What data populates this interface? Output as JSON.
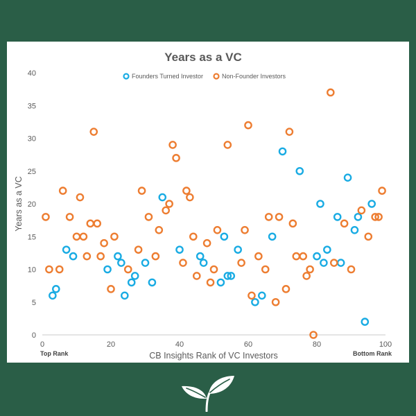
{
  "colors": {
    "background": "#2a5e47",
    "founder": "#19abe3",
    "non_founder": "#ed7d31",
    "text": "#595959"
  },
  "chart_data": {
    "type": "scatter",
    "title": "Years as a VC",
    "xlabel": "CB Insights Rank of VC Investors",
    "ylabel": "Years as a VC",
    "xlim": [
      0,
      100
    ],
    "ylim": [
      0,
      40
    ],
    "xticks": [
      0,
      20,
      40,
      60,
      80,
      100
    ],
    "yticks": [
      0,
      5,
      10,
      15,
      20,
      25,
      30,
      35,
      40
    ],
    "grid": false,
    "legend_position": "top",
    "x_start_note": "Top Rank",
    "x_end_note": "Bottom Rank",
    "series": [
      {
        "name": "Founders Turned Investor",
        "color": "#19abe3",
        "points": [
          [
            3,
            6
          ],
          [
            4,
            7
          ],
          [
            7,
            13
          ],
          [
            9,
            12
          ],
          [
            19,
            10
          ],
          [
            22,
            12
          ],
          [
            23,
            11
          ],
          [
            24,
            6
          ],
          [
            26,
            8
          ],
          [
            27,
            9
          ],
          [
            30,
            11
          ],
          [
            32,
            8
          ],
          [
            35,
            21
          ],
          [
            40,
            13
          ],
          [
            46,
            12
          ],
          [
            47,
            11
          ],
          [
            52,
            8
          ],
          [
            53,
            15
          ],
          [
            54,
            9
          ],
          [
            55,
            9
          ],
          [
            57,
            13
          ],
          [
            62,
            5
          ],
          [
            64,
            6
          ],
          [
            67,
            15
          ],
          [
            70,
            28
          ],
          [
            75,
            25
          ],
          [
            80,
            12
          ],
          [
            81,
            20
          ],
          [
            82,
            11
          ],
          [
            83,
            13
          ],
          [
            86,
            18
          ],
          [
            87,
            11
          ],
          [
            89,
            24
          ],
          [
            91,
            16
          ],
          [
            92,
            18
          ],
          [
            94,
            2
          ],
          [
            96,
            20
          ]
        ]
      },
      {
        "name": "Non-Founder Investors",
        "color": "#ed7d31",
        "points": [
          [
            1,
            18
          ],
          [
            2,
            10
          ],
          [
            5,
            10
          ],
          [
            6,
            22
          ],
          [
            8,
            18
          ],
          [
            10,
            15
          ],
          [
            11,
            21
          ],
          [
            12,
            15
          ],
          [
            13,
            12
          ],
          [
            14,
            17
          ],
          [
            15,
            31
          ],
          [
            16,
            17
          ],
          [
            17,
            12
          ],
          [
            18,
            14
          ],
          [
            20,
            7
          ],
          [
            21,
            15
          ],
          [
            25,
            10
          ],
          [
            28,
            13
          ],
          [
            29,
            22
          ],
          [
            31,
            18
          ],
          [
            33,
            12
          ],
          [
            34,
            16
          ],
          [
            36,
            19
          ],
          [
            37,
            20
          ],
          [
            38,
            29
          ],
          [
            39,
            27
          ],
          [
            41,
            11
          ],
          [
            42,
            22
          ],
          [
            43,
            21
          ],
          [
            44,
            15
          ],
          [
            45,
            9
          ],
          [
            48,
            14
          ],
          [
            49,
            8
          ],
          [
            50,
            10
          ],
          [
            51,
            16
          ],
          [
            54,
            29
          ],
          [
            58,
            11
          ],
          [
            59,
            16
          ],
          [
            60,
            32
          ],
          [
            61,
            6
          ],
          [
            63,
            12
          ],
          [
            65,
            10
          ],
          [
            66,
            18
          ],
          [
            68,
            5
          ],
          [
            69,
            18
          ],
          [
            71,
            7
          ],
          [
            72,
            31
          ],
          [
            73,
            17
          ],
          [
            74,
            12
          ],
          [
            76,
            12
          ],
          [
            77,
            9
          ],
          [
            78,
            10
          ],
          [
            79,
            0
          ],
          [
            84,
            37
          ],
          [
            85,
            11
          ],
          [
            88,
            17
          ],
          [
            90,
            10
          ],
          [
            93,
            19
          ],
          [
            95,
            15
          ],
          [
            97,
            18
          ],
          [
            98,
            18
          ],
          [
            99,
            22
          ]
        ]
      }
    ]
  }
}
